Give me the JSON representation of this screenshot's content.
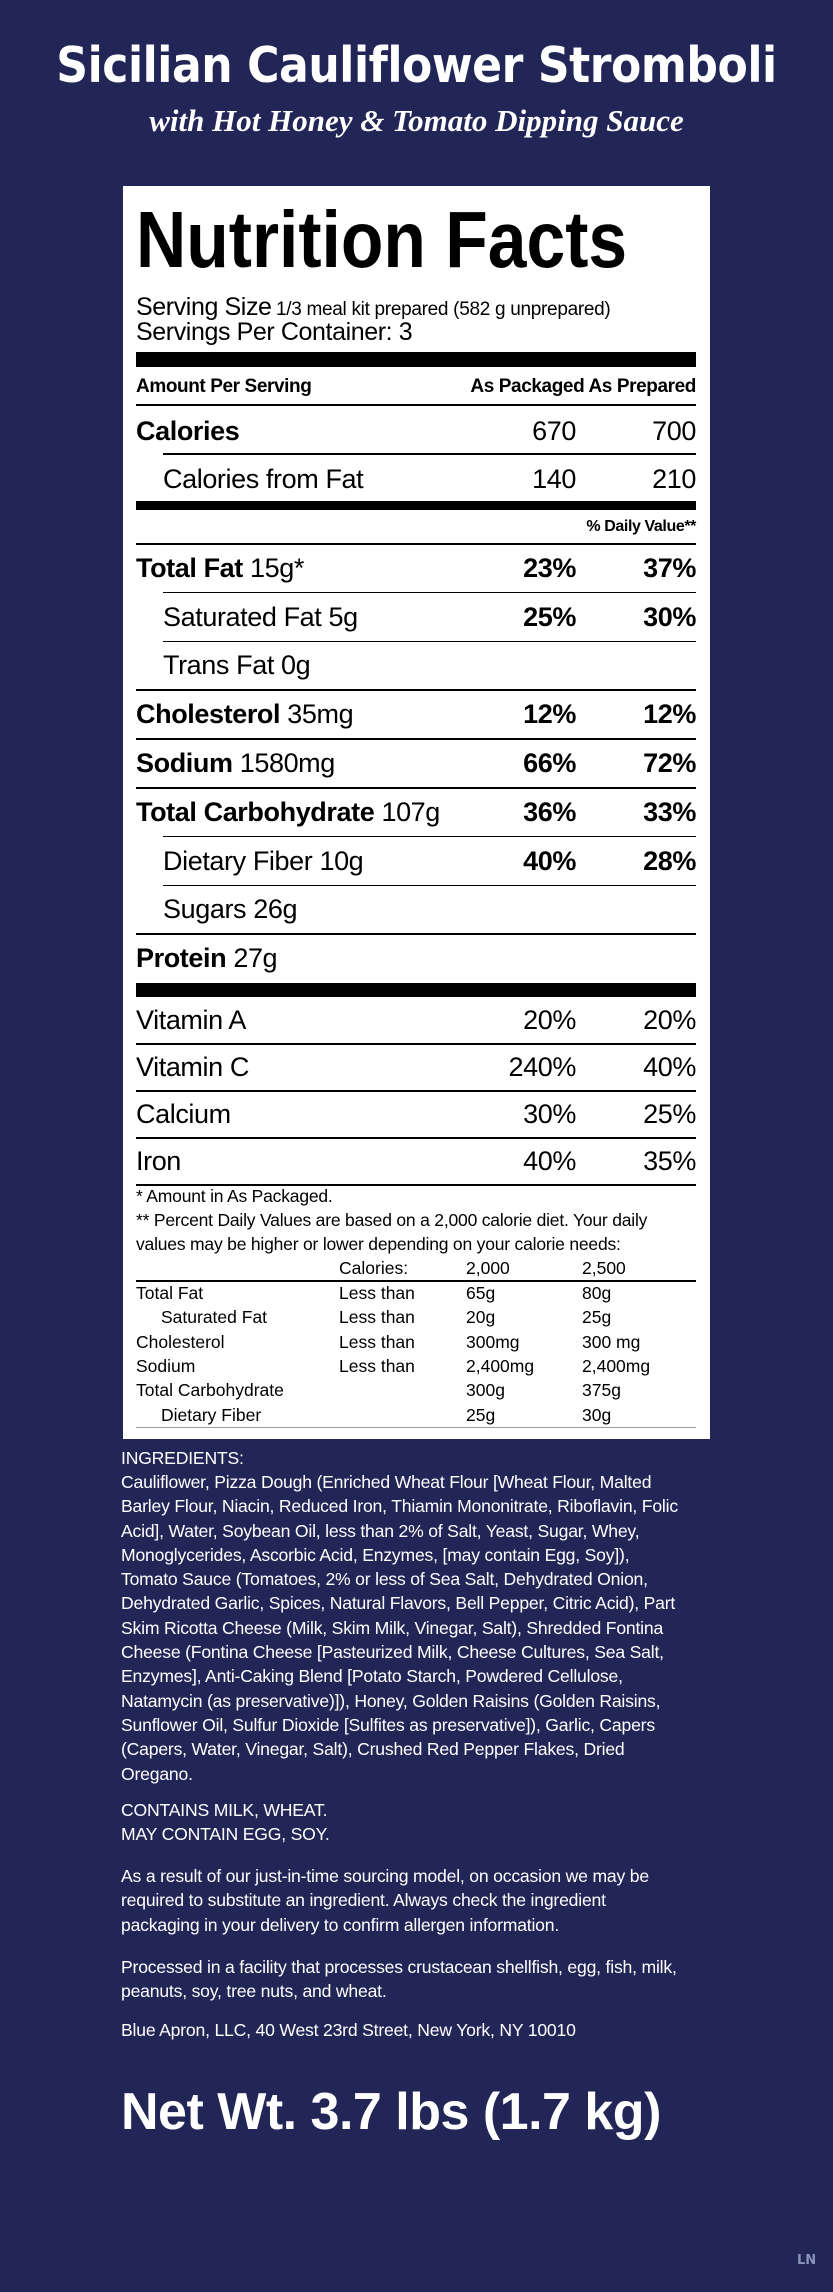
{
  "header": {
    "title": "Sicilian Cauliflower Stromboli",
    "subtitle": "with Hot Honey & Tomato Dipping Sauce"
  },
  "colors": {
    "background": "#212657",
    "label": "#ffffff",
    "text": "#000000",
    "watermark": "#8b93b8"
  },
  "label": {
    "heading": "Nutrition Facts",
    "serving_size_label": "Serving Size",
    "serving_size_value": "1/3 meal kit prepared (582 g unprepared)",
    "servings_per_container": "Servings Per Container: 3",
    "amount_per_serving": "Amount Per Serving",
    "col_headers": "As Packaged As Prepared",
    "calories": {
      "name": "Calories",
      "packaged": "670",
      "prepared": "700"
    },
    "calories_from_fat": {
      "name": "Calories from Fat",
      "packaged": "140",
      "prepared": "210"
    },
    "daily_value_header": "% Daily Value**",
    "nutrients": [
      {
        "name": "Total Fat",
        "amount": "15g*",
        "packaged": "23%",
        "prepared": "37%",
        "bold": true,
        "indent": false
      },
      {
        "name": "Saturated Fat",
        "amount": "5g",
        "packaged": "25%",
        "prepared": "30%",
        "bold": false,
        "indent": true
      },
      {
        "name": "Trans Fat",
        "amount": "0g",
        "packaged": "",
        "prepared": "",
        "bold": false,
        "indent": true
      },
      {
        "name": "Cholesterol",
        "amount": "35mg",
        "packaged": "12%",
        "prepared": "12%",
        "bold": true,
        "indent": false
      },
      {
        "name": "Sodium",
        "amount": "1580mg",
        "packaged": "66%",
        "prepared": "72%",
        "bold": true,
        "indent": false
      },
      {
        "name": "Total Carbohydrate",
        "amount": "107g",
        "packaged": "36%",
        "prepared": "33%",
        "bold": true,
        "indent": false
      },
      {
        "name": "Dietary Fiber",
        "amount": "10g",
        "packaged": "40%",
        "prepared": "28%",
        "bold": false,
        "indent": true
      },
      {
        "name": "Sugars",
        "amount": "26g",
        "packaged": "",
        "prepared": "",
        "bold": false,
        "indent": true
      },
      {
        "name": "Protein",
        "amount": "27g",
        "packaged": "",
        "prepared": "",
        "bold": true,
        "indent": false
      }
    ],
    "vitamins": [
      {
        "name": "Vitamin A",
        "packaged": "20%",
        "prepared": "20%"
      },
      {
        "name": "Vitamin C",
        "packaged": "240%",
        "prepared": "40%"
      },
      {
        "name": "Calcium",
        "packaged": "30%",
        "prepared": "25%"
      },
      {
        "name": "Iron",
        "packaged": "40%",
        "prepared": "35%"
      }
    ],
    "footnote_1": "* Amount in As Packaged.",
    "footnote_2a": "** Percent Daily Values are based on a 2,000 calorie diet. Your daily",
    "footnote_2b": "values may be higher or lower depending on your calorie needs:",
    "dv_table": {
      "header": [
        "",
        "Calories:",
        "2,000",
        "2,500"
      ],
      "rows": [
        {
          "name": "Total Fat",
          "qual": "Less than",
          "a": "65g",
          "b": "80g",
          "indent": false
        },
        {
          "name": "Saturated Fat",
          "qual": "Less than",
          "a": "20g",
          "b": "25g",
          "indent": true
        },
        {
          "name": "Cholesterol",
          "qual": "Less than",
          "a": "300mg",
          "b": "300 mg",
          "indent": false
        },
        {
          "name": "Sodium",
          "qual": "Less than",
          "a": "2,400mg",
          "b": "2,400mg",
          "indent": false
        },
        {
          "name": "Total Carbohydrate",
          "qual": "",
          "a": "300g",
          "b": "375g",
          "indent": false
        },
        {
          "name": "Dietary Fiber",
          "qual": "",
          "a": "25g",
          "b": "30g",
          "indent": true
        }
      ]
    }
  },
  "ingredients": {
    "heading": "INGREDIENTS:",
    "lines": [
      "Cauliflower, Pizza Dough (Enriched Wheat Flour [Wheat Flour, Malted",
      "Barley Flour, Niacin, Reduced Iron, Thiamin Mononitrate, Riboflavin, Folic",
      "Acid], Water, Soybean Oil, less than 2% of Salt, Yeast, Sugar, Whey,",
      "Monoglycerides, Ascorbic Acid, Enzymes, [may contain Egg, Soy]),",
      "Tomato Sauce (Tomatoes, 2% or less of Sea Salt, Dehydrated Onion,",
      "Dehydrated Garlic, Spices, Natural Flavors, Bell Pepper, Citric Acid), Part",
      "Skim Ricotta Cheese (Milk, Skim Milk, Vinegar, Salt), Shredded Fontina",
      "Cheese (Fontina Cheese [Pasteurized Milk, Cheese Cultures, Sea Salt,",
      "Enzymes], Anti-Caking Blend [Potato Starch, Powdered Cellulose,",
      "Natamycin (as preservative)]), Honey, Golden Raisins (Golden Raisins,",
      "Sunflower Oil, Sulfur Dioxide [Sulfites as preservative]), Garlic, Capers",
      "(Capers, Water, Vinegar, Salt), Crushed Red Pepper Flakes, Dried",
      "Oregano."
    ]
  },
  "allergens": {
    "contains": "CONTAINS MILK, WHEAT.",
    "may_contain": "MAY CONTAIN EGG, SOY."
  },
  "sourcing_note": [
    "As a result of our just-in-time sourcing model, on occasion we may be",
    "required to substitute an ingredient. Always check the ingredient",
    "packaging in your delivery to confirm allergen information."
  ],
  "facility_note": [
    "Processed in a facility that processes crustacean shellfish, egg, fish, milk,",
    "peanuts, soy, tree nuts, and wheat."
  ],
  "address": "Blue Apron, LLC, 40 West 23rd Street, New York, NY 10010",
  "net_weight": "Net Wt. 3.7 lbs (1.7 kg)",
  "watermark": "LN"
}
